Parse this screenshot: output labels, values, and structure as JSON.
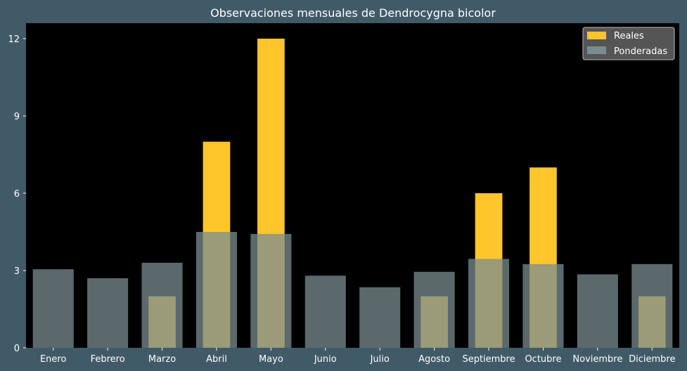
{
  "chart_data": {
    "type": "bar",
    "title": "Observaciones mensuales de Dendrocygna bicolor",
    "xlabel": "",
    "ylabel": "",
    "categories": [
      "Enero",
      "Febrero",
      "Marzo",
      "Abril",
      "Mayo",
      "Junio",
      "Julio",
      "Agosto",
      "Septiembre",
      "Octubre",
      "Noviembre",
      "Diciembre"
    ],
    "series": [
      {
        "name": "Reales",
        "color": "#ffc62b",
        "values": [
          0,
          0,
          2,
          8,
          12,
          0,
          0,
          2,
          6,
          7,
          0,
          2
        ]
      },
      {
        "name": "Ponderadas",
        "color": "#798c92",
        "values": [
          3.05,
          2.7,
          3.3,
          4.5,
          4.42,
          2.8,
          2.35,
          2.95,
          3.45,
          3.25,
          2.85,
          3.25
        ]
      }
    ],
    "ylim": [
      0,
      12.6
    ],
    "yticks": [
      0,
      3,
      6,
      9,
      12
    ],
    "grid": false,
    "legend_position": "top-right",
    "plot_background": "#000000",
    "figure_background": "#415a67"
  }
}
